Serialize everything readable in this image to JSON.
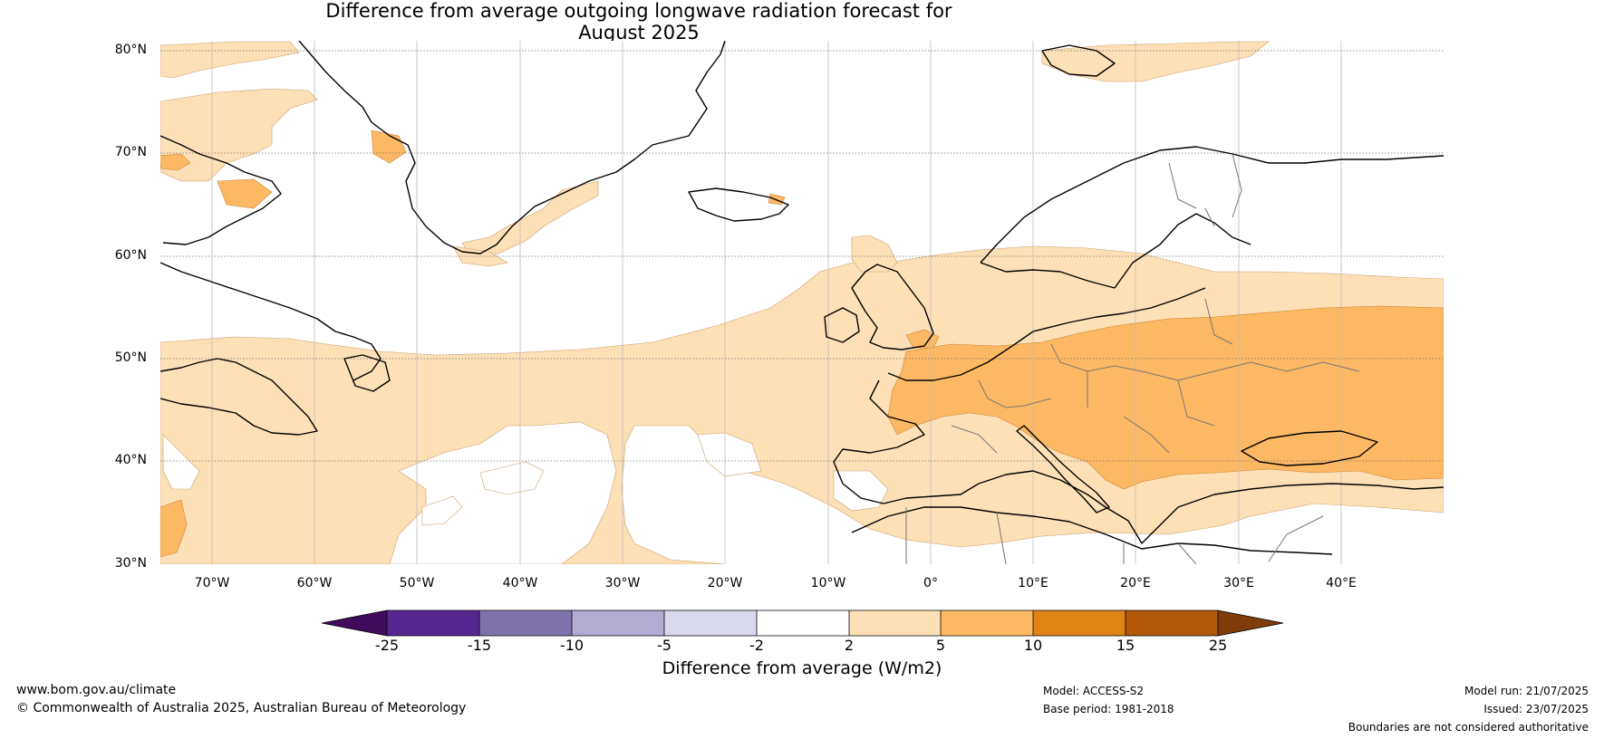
{
  "title_line1": "Difference from average outgoing longwave radiation forecast for",
  "title_line2": "August 2025",
  "map": {
    "extent": {
      "lon": [
        -75,
        50
      ],
      "lat": [
        30,
        81
      ]
    },
    "lat_ticks": [
      "80°N",
      "70°N",
      "60°N",
      "50°N",
      "40°N",
      "30°N"
    ],
    "lon_ticks": [
      "70°W",
      "60°W",
      "50°W",
      "40°W",
      "30°W",
      "20°W",
      "10°W",
      "0°",
      "10°E",
      "20°E",
      "30°E",
      "40°E"
    ]
  },
  "colorbar": {
    "label": "Difference from average (W/m2)",
    "ticks": [
      "-25",
      "-15",
      "-10",
      "-5",
      "-2",
      "2",
      "5",
      "10",
      "15",
      "25"
    ],
    "colors": [
      "#3f0b5a",
      "#54278f",
      "#8073ac",
      "#b2abd2",
      "#d8daeb",
      "#ffffff",
      "#fee0b6",
      "#fdb863",
      "#e08214",
      "#b35806",
      "#7f3b08"
    ]
  },
  "footer": {
    "website": "www.bom.gov.au/climate",
    "copyright": "© Commonwealth of Australia 2025, Australian Bureau of Meteorology",
    "model": "Model: ACCESS-S2",
    "base_period": "Base period: 1981-2018",
    "model_run": "Model run: 21/07/2025",
    "issued": "Issued: 23/07/2025",
    "disclaimer": "Boundaries are not considered authoritative"
  }
}
